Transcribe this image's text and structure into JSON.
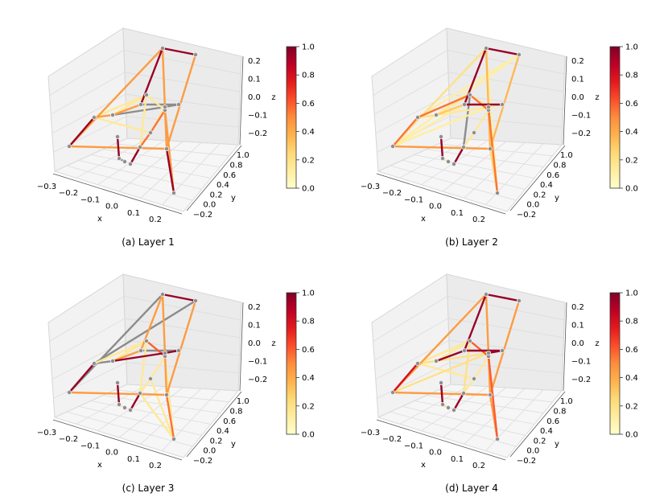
{
  "chart_data": [
    {
      "type": "scatter",
      "title": "",
      "caption": "(a) Layer 1",
      "xlabel": "x",
      "ylabel": "y",
      "zlabel": "z",
      "xticks": [
        "−0.3",
        "−0.2",
        "−0.1",
        "0.0",
        "0.1",
        "0.2"
      ],
      "yticks": [
        "−0.2",
        "0.0",
        "0.2",
        "0.4",
        "0.6",
        "0.8",
        "1.0"
      ],
      "zticks": [
        "0.2",
        "0.1",
        "0.0",
        "−0.1",
        "−0.2"
      ],
      "colorbar": {
        "ticks": [
          "1.0",
          "0.8",
          "0.6",
          "0.4",
          "0.2",
          "0.0"
        ],
        "range": [
          0,
          1
        ],
        "colormap": "YlOrRd"
      },
      "edges": [
        {
          "a": 0,
          "b": 1,
          "w": 0.45
        },
        {
          "a": 1,
          "b": 12,
          "w": 0.45
        },
        {
          "a": 0,
          "b": 3,
          "w": 0.95
        },
        {
          "a": 3,
          "b": 4,
          "w": 0.45
        },
        {
          "a": 4,
          "b": 5,
          "w": 0.45
        },
        {
          "a": 5,
          "b": 1,
          "w": 0.95
        },
        {
          "a": 0,
          "b": 12,
          "w": 0.45
        },
        {
          "a": 2,
          "b": 12,
          "w": 0.45
        },
        {
          "a": 2,
          "b": 1,
          "w": 0.95
        },
        {
          "a": 12,
          "b": 13,
          "w": 0.95
        },
        {
          "a": 3,
          "b": 10,
          "w": 0.15
        },
        {
          "a": 4,
          "b": 10,
          "w": 0.15
        },
        {
          "a": 10,
          "b": 9,
          "w": 0.15
        },
        {
          "a": 10,
          "b": 11,
          "w": 0.15
        },
        {
          "a": 9,
          "b": 14,
          "w": 0.55
        },
        {
          "a": 14,
          "b": 11,
          "w": 0.55
        },
        {
          "a": 11,
          "b": 13,
          "w": 0.45
        },
        {
          "a": 6,
          "b": 7,
          "w": 0.95
        },
        {
          "a": 8,
          "b": 9,
          "w": 0.95
        },
        {
          "a": 5,
          "b": 15,
          "w": -1
        },
        {
          "a": 15,
          "b": 16,
          "w": -1
        },
        {
          "a": 4,
          "b": 16,
          "w": -1
        },
        {
          "a": 7,
          "b": 17,
          "w": -1
        },
        {
          "a": 14,
          "b": 16,
          "w": 0.15
        },
        {
          "a": 16,
          "b": 11,
          "w": 0.15
        },
        {
          "a": 3,
          "b": 14,
          "w": 0.15
        }
      ]
    },
    {
      "type": "scatter",
      "title": "",
      "caption": "(b) Layer 2",
      "xlabel": "x",
      "ylabel": "y",
      "zlabel": "z",
      "xticks": [
        "−0.3",
        "−0.2",
        "−0.1",
        "0.0",
        "0.1",
        "0.2"
      ],
      "yticks": [
        "−0.2",
        "0.0",
        "0.2",
        "0.4",
        "0.6",
        "0.8",
        "1.0"
      ],
      "zticks": [
        "0.2",
        "0.1",
        "0.0",
        "−0.1",
        "−0.2"
      ],
      "colorbar": {
        "ticks": [
          "1.0",
          "0.8",
          "0.6",
          "0.4",
          "0.2",
          "0.0"
        ],
        "range": [
          0,
          1
        ],
        "colormap": "YlOrRd"
      },
      "edges": [
        {
          "a": 0,
          "b": 1,
          "w": 0.2
        },
        {
          "a": 1,
          "b": 12,
          "w": 0.35
        },
        {
          "a": 0,
          "b": 3,
          "w": 0.55
        },
        {
          "a": 3,
          "b": 4,
          "w": 0.2
        },
        {
          "a": 4,
          "b": 5,
          "w": 0.3
        },
        {
          "a": 5,
          "b": 1,
          "w": 0.95
        },
        {
          "a": 0,
          "b": 12,
          "w": 0.45
        },
        {
          "a": 2,
          "b": 12,
          "w": 0.35
        },
        {
          "a": 2,
          "b": 1,
          "w": 0.95
        },
        {
          "a": 12,
          "b": 13,
          "w": 0.25
        },
        {
          "a": 3,
          "b": 10,
          "w": 0.55
        },
        {
          "a": 4,
          "b": 10,
          "w": 0.15
        },
        {
          "a": 10,
          "b": 9,
          "w": -1
        },
        {
          "a": 10,
          "b": 11,
          "w": 0.55
        },
        {
          "a": 9,
          "b": 14,
          "w": 0.15
        },
        {
          "a": 14,
          "b": 11,
          "w": 0.15
        },
        {
          "a": 11,
          "b": 13,
          "w": 0.55
        },
        {
          "a": 6,
          "b": 7,
          "w": 0.95
        },
        {
          "a": 8,
          "b": 9,
          "w": 0.95
        },
        {
          "a": 5,
          "b": 15,
          "w": 0.95
        },
        {
          "a": 15,
          "b": 16,
          "w": 0.15
        },
        {
          "a": 4,
          "b": 16,
          "w": 0.15
        },
        {
          "a": 7,
          "b": 17,
          "w": 0.15
        },
        {
          "a": 0,
          "b": 2,
          "w": 0.12
        },
        {
          "a": 0,
          "b": 5,
          "w": 0.12
        },
        {
          "a": 0,
          "b": 16,
          "w": 0.12
        },
        {
          "a": 3,
          "b": 2,
          "w": 0.12
        },
        {
          "a": 4,
          "b": 2,
          "w": 0.12
        },
        {
          "a": 1,
          "b": 13,
          "w": 0.12
        },
        {
          "a": 16,
          "b": 13,
          "w": -1
        },
        {
          "a": 10,
          "b": 16,
          "w": 0.15
        }
      ]
    },
    {
      "type": "scatter",
      "title": "",
      "caption": "(c) Layer 3",
      "xlabel": "x",
      "ylabel": "y",
      "zlabel": "z",
      "xticks": [
        "−0.3",
        "−0.2",
        "−0.1",
        "0.0",
        "0.1",
        "0.2"
      ],
      "yticks": [
        "−0.2",
        "0.0",
        "0.2",
        "0.4",
        "0.6",
        "0.8",
        "1.0"
      ],
      "zticks": [
        "0.2",
        "0.1",
        "0.0",
        "−0.1",
        "−0.2"
      ],
      "colorbar": {
        "ticks": [
          "1.0",
          "0.8",
          "0.6",
          "0.4",
          "0.2",
          "0.0"
        ],
        "range": [
          0,
          1
        ],
        "colormap": "YlOrRd"
      },
      "edges": [
        {
          "a": 0,
          "b": 1,
          "w": -1
        },
        {
          "a": 1,
          "b": 12,
          "w": 0.45
        },
        {
          "a": 0,
          "b": 3,
          "w": 0.95
        },
        {
          "a": 3,
          "b": 4,
          "w": -1
        },
        {
          "a": 4,
          "b": 5,
          "w": 0.45
        },
        {
          "a": 5,
          "b": 1,
          "w": 0.45
        },
        {
          "a": 0,
          "b": 12,
          "w": 0.45
        },
        {
          "a": 2,
          "b": 12,
          "w": 0.45
        },
        {
          "a": 2,
          "b": 1,
          "w": 0.95
        },
        {
          "a": 12,
          "b": 13,
          "w": 0.55
        },
        {
          "a": 3,
          "b": 10,
          "w": 0.15
        },
        {
          "a": 4,
          "b": 10,
          "w": 0.15
        },
        {
          "a": 10,
          "b": 9,
          "w": 0.15
        },
        {
          "a": 10,
          "b": 11,
          "w": 0.6
        },
        {
          "a": 9,
          "b": 14,
          "w": 0.15
        },
        {
          "a": 14,
          "b": 11,
          "w": 0.15
        },
        {
          "a": 11,
          "b": 13,
          "w": 0.15
        },
        {
          "a": 6,
          "b": 7,
          "w": 0.95
        },
        {
          "a": 8,
          "b": 9,
          "w": 0.95
        },
        {
          "a": 5,
          "b": 15,
          "w": -1
        },
        {
          "a": 15,
          "b": 16,
          "w": 0.95
        },
        {
          "a": 4,
          "b": 16,
          "w": 0.95
        },
        {
          "a": 7,
          "b": 17,
          "w": 0.15
        },
        {
          "a": 3,
          "b": 2,
          "w": -1
        },
        {
          "a": 14,
          "b": 13,
          "w": 0.15
        },
        {
          "a": 9,
          "b": 13,
          "w": 0.15
        },
        {
          "a": 16,
          "b": 11,
          "w": 0.6
        }
      ]
    },
    {
      "type": "scatter",
      "title": "",
      "caption": "(d) Layer 4",
      "xlabel": "x",
      "ylabel": "y",
      "zlabel": "z",
      "xticks": [
        "−0.3",
        "−0.2",
        "−0.1",
        "0.0",
        "0.1",
        "0.2"
      ],
      "yticks": [
        "−0.2",
        "0.0",
        "0.2",
        "0.4",
        "0.6",
        "0.8",
        "1.0"
      ],
      "zticks": [
        "0.2",
        "0.1",
        "0.0",
        "−0.1",
        "−0.2"
      ],
      "colorbar": {
        "ticks": [
          "1.0",
          "0.8",
          "0.6",
          "0.4",
          "0.2",
          "0.0"
        ],
        "range": [
          0,
          1
        ],
        "colormap": "YlOrRd"
      },
      "edges": [
        {
          "a": 0,
          "b": 1,
          "w": 0.45
        },
        {
          "a": 1,
          "b": 12,
          "w": 0.45
        },
        {
          "a": 0,
          "b": 3,
          "w": 0.8
        },
        {
          "a": 3,
          "b": 4,
          "w": 0.2
        },
        {
          "a": 4,
          "b": 5,
          "w": 0.95
        },
        {
          "a": 5,
          "b": 1,
          "w": 0.95
        },
        {
          "a": 0,
          "b": 12,
          "w": 0.45
        },
        {
          "a": 2,
          "b": 12,
          "w": 0.45
        },
        {
          "a": 2,
          "b": 1,
          "w": 0.95
        },
        {
          "a": 12,
          "b": 13,
          "w": 0.45
        },
        {
          "a": 3,
          "b": 10,
          "w": 0.15
        },
        {
          "a": 4,
          "b": 10,
          "w": 0.15
        },
        {
          "a": 10,
          "b": 9,
          "w": 0.2
        },
        {
          "a": 10,
          "b": 11,
          "w": 0.6
        },
        {
          "a": 9,
          "b": 14,
          "w": 0.15
        },
        {
          "a": 14,
          "b": 11,
          "w": 0.15
        },
        {
          "a": 11,
          "b": 13,
          "w": 0.6
        },
        {
          "a": 6,
          "b": 7,
          "w": 0.95
        },
        {
          "a": 8,
          "b": 9,
          "w": 0.95
        },
        {
          "a": 5,
          "b": 15,
          "w": 0.95
        },
        {
          "a": 15,
          "b": 16,
          "w": 0.95
        },
        {
          "a": 4,
          "b": 16,
          "w": 0.2
        },
        {
          "a": 7,
          "b": 17,
          "w": 0.2
        },
        {
          "a": 0,
          "b": 16,
          "w": 0.2
        },
        {
          "a": 16,
          "b": 11,
          "w": 0.6
        },
        {
          "a": 3,
          "b": 14,
          "w": 0.15
        }
      ]
    }
  ]
}
